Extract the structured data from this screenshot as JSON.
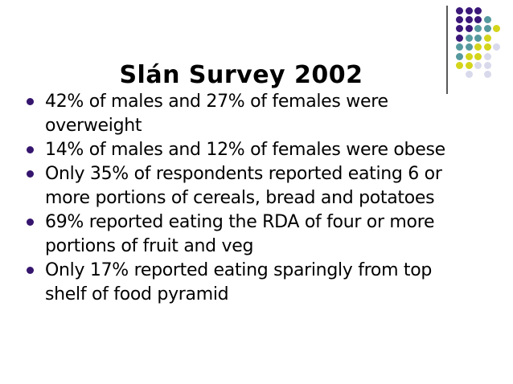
{
  "slide": {
    "title": "Slán Survey 2002",
    "bullets": [
      {
        "lines": [
          "42% of males and 27% of females were",
          "overweight"
        ]
      },
      {
        "lines": [
          "14% of males and 12% of females were obese"
        ]
      },
      {
        "lines": [
          "Only 35% of respondents reported eating 6 or",
          "more portions of cereals, bread and potatoes"
        ]
      },
      {
        "lines": [
          "69% reported eating the RDA of four or more",
          "portions of fruit and veg"
        ]
      },
      {
        "lines": [
          "Only 17% reported eating sparingly from top",
          "shelf of food pyramid"
        ]
      }
    ],
    "colors": {
      "background": "#ffffff",
      "title_text": "#000000",
      "body_text": "#000000",
      "bullet_marker": "#35156e",
      "dot_purple": "#3a1778",
      "dot_teal": "#55999e",
      "dot_yellow": "#d4d51b",
      "dot_lavender": "#d9d9ec",
      "divider_line": "#595959"
    },
    "decoration": {
      "dot_grid_rows": [
        [
          "purple",
          "purple",
          "purple",
          null,
          null
        ],
        [
          "purple",
          "purple",
          "purple",
          "teal",
          null
        ],
        [
          "purple",
          "purple",
          "teal",
          "teal",
          "yellow"
        ],
        [
          "purple",
          "teal",
          "teal",
          "yellow",
          null
        ],
        [
          "teal",
          "teal",
          "yellow",
          "yellow",
          "lavender"
        ],
        [
          "teal",
          "yellow",
          "yellow",
          "lavender",
          null
        ],
        [
          "yellow",
          "yellow",
          "lavender",
          "lavender",
          null
        ],
        [
          null,
          "lavender",
          null,
          "lavender",
          null
        ]
      ]
    }
  }
}
